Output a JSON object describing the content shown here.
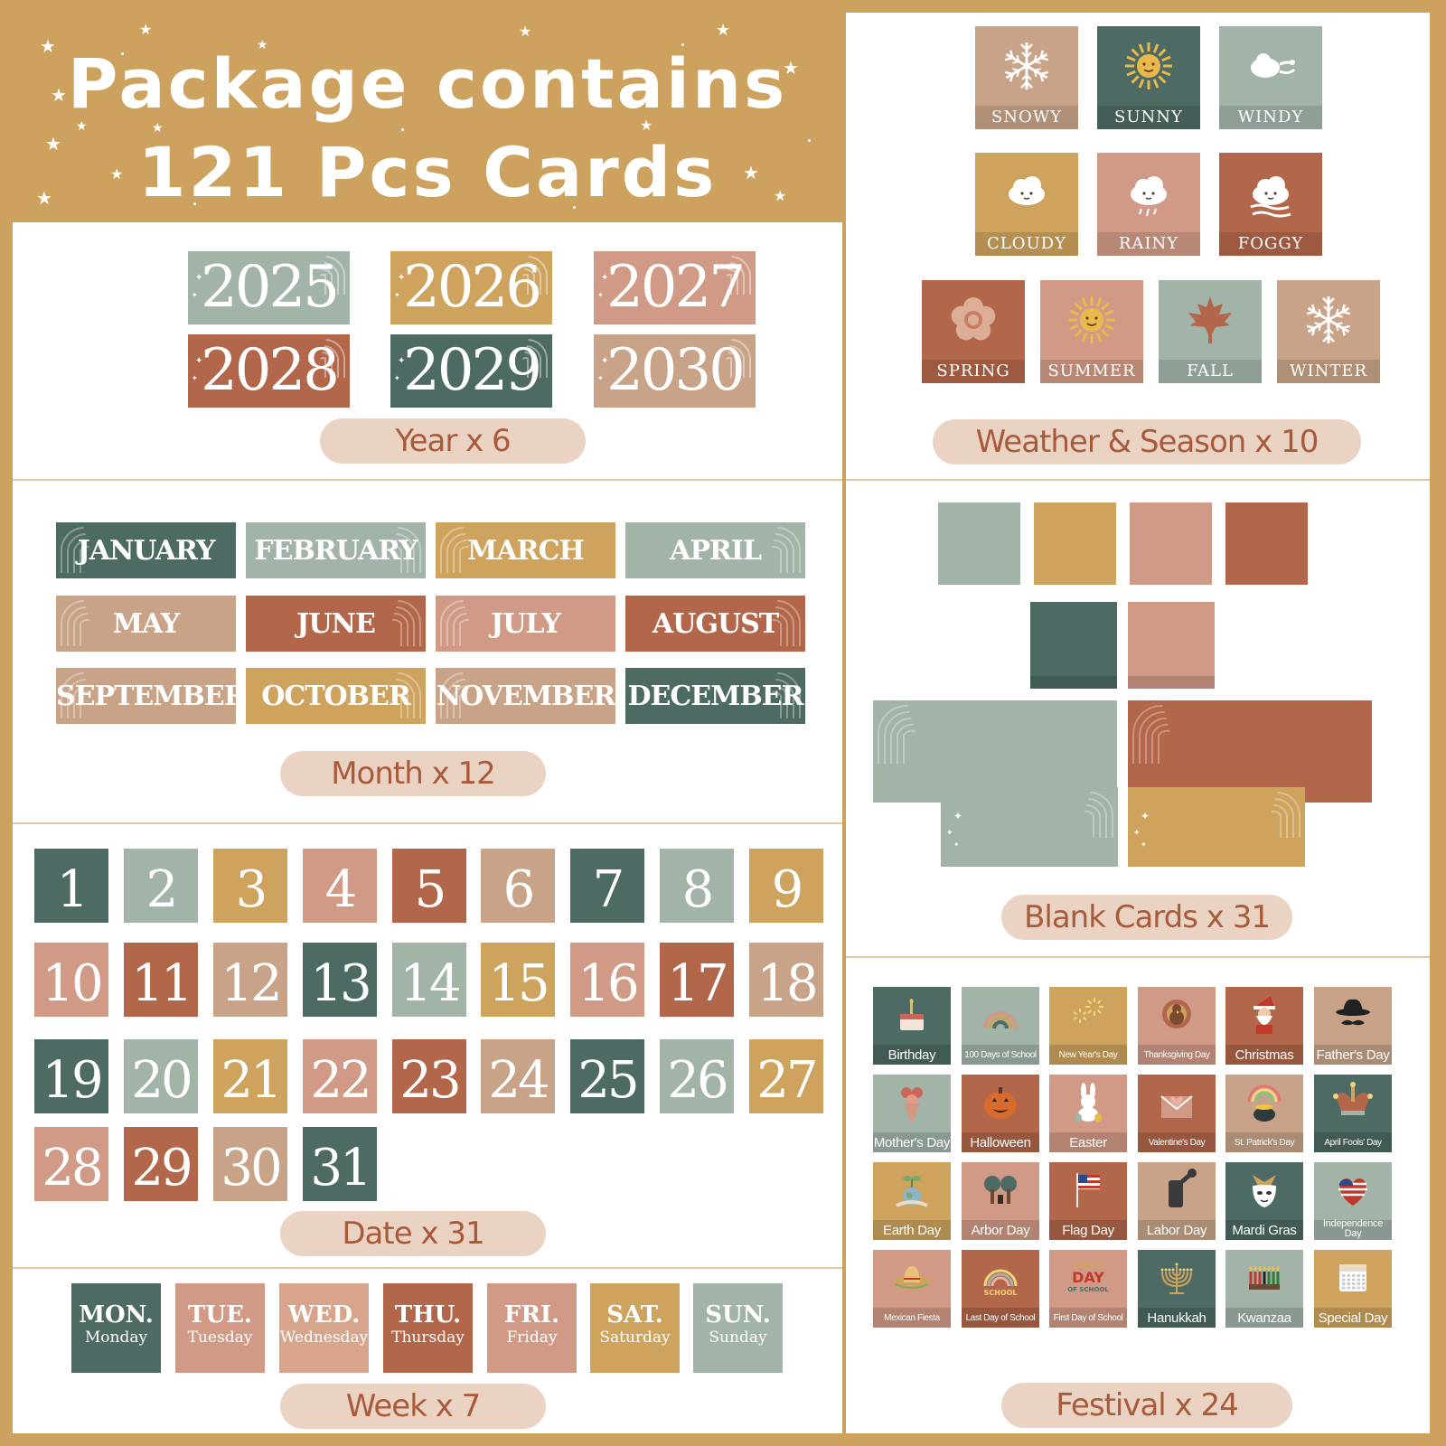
{
  "header": {
    "line1": "Package contains",
    "line2": "121 Pcs Cards"
  },
  "colors": {
    "sage": "#a2b4a8",
    "mustard": "#cea35d",
    "blush": "#d19a86",
    "rust": "#b2664a",
    "teal": "#4e6a65",
    "tan": "#c8a387",
    "pill_bg": "#ead3c3",
    "pill_text": "#a85a3b"
  },
  "year": {
    "label": "Year x 6",
    "cards": [
      {
        "value": "2025",
        "color": "#a2b4a8"
      },
      {
        "value": "2026",
        "color": "#cea35d"
      },
      {
        "value": "2027",
        "color": "#d19a86"
      },
      {
        "value": "2028",
        "color": "#b2664a"
      },
      {
        "value": "2029",
        "color": "#4e6a65"
      },
      {
        "value": "2030",
        "color": "#c8a387"
      }
    ]
  },
  "month": {
    "label": "Month x 12",
    "cards": [
      {
        "value": "JANUARY",
        "color": "#4e6a65"
      },
      {
        "value": "FEBRUARY",
        "color": "#a2b4a8"
      },
      {
        "value": "MARCH",
        "color": "#cea35d"
      },
      {
        "value": "APRIL",
        "color": "#a2b4a8"
      },
      {
        "value": "MAY",
        "color": "#c8a387"
      },
      {
        "value": "JUNE",
        "color": "#b2664a"
      },
      {
        "value": "JULY",
        "color": "#d19a86"
      },
      {
        "value": "AUGUST",
        "color": "#b2664a"
      },
      {
        "value": "SEPTEMBER",
        "color": "#c8a387"
      },
      {
        "value": "OCTOBER",
        "color": "#cea35d"
      },
      {
        "value": "NOVEMBER",
        "color": "#c8a387"
      },
      {
        "value": "DECEMBER",
        "color": "#4e6a65"
      }
    ]
  },
  "date": {
    "label": "Date x 31",
    "cards": [
      {
        "value": "1",
        "color": "#4e6a65"
      },
      {
        "value": "2",
        "color": "#a2b4a8"
      },
      {
        "value": "3",
        "color": "#cea35d"
      },
      {
        "value": "4",
        "color": "#d19a86"
      },
      {
        "value": "5",
        "color": "#b2664a"
      },
      {
        "value": "6",
        "color": "#c8a387"
      },
      {
        "value": "7",
        "color": "#4e6a65"
      },
      {
        "value": "8",
        "color": "#a2b4a8"
      },
      {
        "value": "9",
        "color": "#cea35d"
      },
      {
        "value": "10",
        "color": "#d19a86"
      },
      {
        "value": "11",
        "color": "#b2664a"
      },
      {
        "value": "12",
        "color": "#c8a387"
      },
      {
        "value": "13",
        "color": "#4e6a65"
      },
      {
        "value": "14",
        "color": "#a2b4a8"
      },
      {
        "value": "15",
        "color": "#cea35d"
      },
      {
        "value": "16",
        "color": "#d19a86"
      },
      {
        "value": "17",
        "color": "#b2664a"
      },
      {
        "value": "18",
        "color": "#c8a387"
      },
      {
        "value": "19",
        "color": "#4e6a65"
      },
      {
        "value": "20",
        "color": "#a2b4a8"
      },
      {
        "value": "21",
        "color": "#cea35d"
      },
      {
        "value": "22",
        "color": "#d19a86"
      },
      {
        "value": "23",
        "color": "#b2664a"
      },
      {
        "value": "24",
        "color": "#c8a387"
      },
      {
        "value": "25",
        "color": "#4e6a65"
      },
      {
        "value": "26",
        "color": "#a2b4a8"
      },
      {
        "value": "27",
        "color": "#cea35d"
      },
      {
        "value": "28",
        "color": "#d19a86"
      },
      {
        "value": "29",
        "color": "#b2664a"
      },
      {
        "value": "30",
        "color": "#c8a387"
      },
      {
        "value": "31",
        "color": "#4e6a65"
      }
    ]
  },
  "week": {
    "label": "Week x 7",
    "cards": [
      {
        "abbr": "MON.",
        "full": "Monday",
        "color": "#4e6a65"
      },
      {
        "abbr": "TUE.",
        "full": "Tuesday",
        "color": "#d19a86"
      },
      {
        "abbr": "WED.",
        "full": "Wednesday",
        "color": "#d7a58c"
      },
      {
        "abbr": "THU.",
        "full": "Thursday",
        "color": "#b2664a"
      },
      {
        "abbr": "FRI.",
        "full": "Friday",
        "color": "#d19a86"
      },
      {
        "abbr": "SAT.",
        "full": "Saturday",
        "color": "#cea35d"
      },
      {
        "abbr": "SUN.",
        "full": "Sunday",
        "color": "#a2b4a8"
      }
    ]
  },
  "weather": {
    "label": "Weather & Season x 10",
    "cards": [
      {
        "value": "SNOWY",
        "icon": "snowflake-icon",
        "color": "#c8a387"
      },
      {
        "value": "SUNNY",
        "icon": "sun-icon",
        "color": "#4e6a65"
      },
      {
        "value": "WINDY",
        "icon": "wind-cloud-icon",
        "color": "#a2b4a8"
      },
      {
        "value": "CLOUDY",
        "icon": "cloud-icon",
        "color": "#cea35d"
      },
      {
        "value": "RAINY",
        "icon": "rain-cloud-icon",
        "color": "#d19a86"
      },
      {
        "value": "FOGGY",
        "icon": "fog-cloud-icon",
        "color": "#b2664a"
      },
      {
        "value": "SPRING",
        "icon": "flower-icon",
        "color": "#b2664a"
      },
      {
        "value": "SUMMER",
        "icon": "sun-icon",
        "color": "#d19a86"
      },
      {
        "value": "FALL",
        "icon": "maple-leaf-icon",
        "color": "#a2b4a8"
      },
      {
        "value": "WINTER",
        "icon": "snowflake-icon",
        "color": "#c8a387"
      }
    ]
  },
  "blank": {
    "label": "Blank Cards x 31",
    "cards": [
      {
        "color": "#a2b4a8"
      },
      {
        "color": "#cea35d"
      },
      {
        "color": "#d19a86"
      },
      {
        "color": "#b2664a"
      },
      {
        "color": "#4e6a65"
      },
      {
        "color": "#d19a86"
      },
      {
        "color": "#a2b4a8"
      },
      {
        "color": "#b2664a"
      },
      {
        "color": "#a2b4a8"
      },
      {
        "color": "#cea35d"
      }
    ]
  },
  "festival": {
    "label": "Festival x 24",
    "cards": [
      {
        "value": "Birthday",
        "icon": "cake-icon",
        "color": "#4e6a65"
      },
      {
        "value": "100 Days of School",
        "icon": "rainbow-icon",
        "color": "#a2b4a8"
      },
      {
        "value": "New Year's Day",
        "icon": "fireworks-icon",
        "color": "#cea35d"
      },
      {
        "value": "Thanksgiving Day",
        "icon": "turkey-icon",
        "color": "#d19a86"
      },
      {
        "value": "Christmas",
        "icon": "santa-icon",
        "color": "#b2664a"
      },
      {
        "value": "Father's Day",
        "icon": "hat-mustache-icon",
        "color": "#c8a387"
      },
      {
        "value": "Mother's Day",
        "icon": "bouquet-icon",
        "color": "#a2b4a8"
      },
      {
        "value": "Halloween",
        "icon": "pumpkin-icon",
        "color": "#b2664a"
      },
      {
        "value": "Easter",
        "icon": "bunny-icon",
        "color": "#d19a86"
      },
      {
        "value": "Valentine's Day",
        "icon": "envelope-heart-icon",
        "color": "#b2664a"
      },
      {
        "value": "St. Patrick's Day",
        "icon": "pot-of-gold-icon",
        "color": "#c8a387"
      },
      {
        "value": "April Fools' Day",
        "icon": "jester-hat-icon",
        "color": "#4e6a65"
      },
      {
        "value": "Earth Day",
        "icon": "globe-plant-icon",
        "color": "#cea35d"
      },
      {
        "value": "Arbor Day",
        "icon": "trees-icon",
        "color": "#d19a86"
      },
      {
        "value": "Flag Day",
        "icon": "flag-icon",
        "color": "#b2664a"
      },
      {
        "value": "Labor Day",
        "icon": "fist-wrench-icon",
        "color": "#c8a387"
      },
      {
        "value": "Mardi Gras",
        "icon": "mask-icon",
        "color": "#4e6a65"
      },
      {
        "value": "Independence Day",
        "icon": "flag-heart-icon",
        "color": "#a2b4a8"
      },
      {
        "value": "Mexican Fiesta",
        "icon": "sombrero-icon",
        "color": "#d19a86"
      },
      {
        "value": "Last Day of School",
        "icon": "rainbow-school-icon",
        "color": "#b2664a"
      },
      {
        "value": "First Day of School",
        "icon": "first-day-text-icon",
        "color": "#d19a86"
      },
      {
        "value": "Hanukkah",
        "icon": "menorah-icon",
        "color": "#4e6a65"
      },
      {
        "value": "Kwanzaa",
        "icon": "kinara-icon",
        "color": "#a2b4a8"
      },
      {
        "value": "Special Day",
        "icon": "calendar-icon",
        "color": "#cea35d"
      }
    ]
  }
}
